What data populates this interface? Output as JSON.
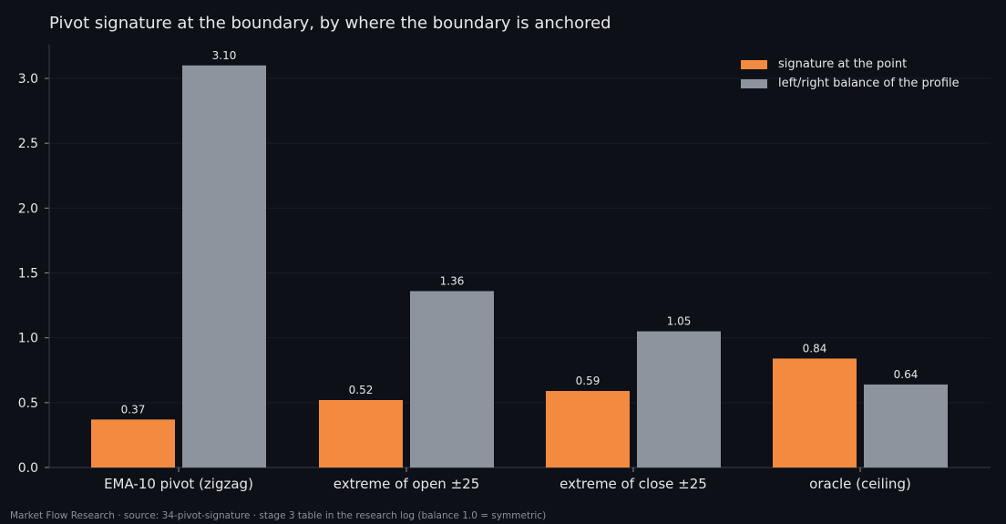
{
  "chart_data": {
    "type": "bar",
    "title": "Pivot signature at the boundary, by where the boundary is anchored",
    "xlabel": "",
    "ylabel": "",
    "categories": [
      "EMA-10 pivot (zigzag)",
      "extreme of open ±25",
      "extreme of close ±25",
      "oracle (ceiling)"
    ],
    "series": [
      {
        "name": "signature at the point",
        "values": [
          0.37,
          0.52,
          0.59,
          0.84
        ],
        "labels": [
          "0.37",
          "0.52",
          "0.59",
          "0.84"
        ],
        "color": "#f28a3f"
      },
      {
        "name": "left/right balance of the profile",
        "values": [
          3.1,
          1.36,
          1.05,
          0.64
        ],
        "labels": [
          "3.10",
          "1.36",
          "1.05",
          "0.64"
        ],
        "color": "#8e949e"
      }
    ],
    "ylim": [
      0,
      3.26
    ],
    "yticks": [
      0.0,
      0.5,
      1.0,
      1.5,
      2.0,
      2.5,
      3.0
    ],
    "ytick_labels": [
      "0.0",
      "0.5",
      "1.0",
      "1.5",
      "2.0",
      "2.5",
      "3.0"
    ],
    "grid": true,
    "legend_position": "top-right"
  },
  "footer": "Market Flow Research · source: 34-pivot-signature · stage 3 table in the research log (balance 1.0 = symmetric)"
}
